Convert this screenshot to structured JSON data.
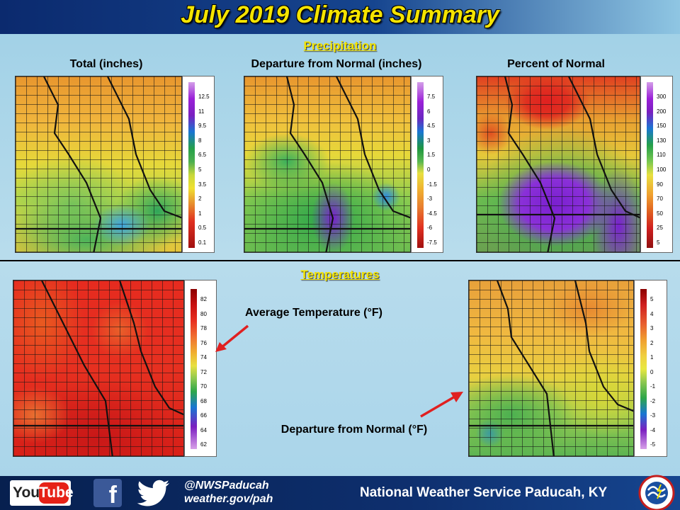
{
  "header": {
    "title": "July 2019 Climate Summary"
  },
  "precipitation": {
    "section_title": "Precipitation",
    "panels": [
      {
        "label": "Total (inches)",
        "legend": [
          "12.5",
          "11",
          "9.5",
          "8",
          "6.5",
          "5",
          "3.5",
          "2",
          "1",
          "0.5",
          "0.1"
        ]
      },
      {
        "label": "Departure from Normal (inches)",
        "legend": [
          "7.5",
          "6",
          "4.5",
          "3",
          "1.5",
          "0",
          "-1.5",
          "-3",
          "-4.5",
          "-6",
          "-7.5"
        ]
      },
      {
        "label": "Percent of Normal",
        "legend": [
          "300",
          "200",
          "150",
          "130",
          "110",
          "100",
          "90",
          "70",
          "50",
          "25",
          "5"
        ]
      }
    ]
  },
  "temperatures": {
    "section_title": "Temperatures",
    "average": {
      "label": "Average Temperature (°F)",
      "legend": [
        "82",
        "80",
        "78",
        "76",
        "74",
        "72",
        "70",
        "68",
        "66",
        "64",
        "62"
      ]
    },
    "departure": {
      "label": "Departure from Normal (°F)",
      "legend": [
        "5",
        "4",
        "3",
        "2",
        "1",
        "0",
        "-1",
        "-2",
        "-3",
        "-4",
        "-5"
      ]
    }
  },
  "footer": {
    "youtube_you": "You",
    "youtube_tube": "Tube",
    "facebook_glyph": "f",
    "handle": "@NWSPaducah",
    "url": "weather.gov/pah",
    "office": "National Weather Service Paducah, KY",
    "icons": [
      "youtube-icon",
      "facebook-icon",
      "twitter-icon",
      "nws-logo-icon"
    ]
  },
  "colors": {
    "title_yellow": "#f5e400",
    "header_navy": "#0b2a6e",
    "background": "#b8dcec",
    "arrow_red": "#e02020"
  }
}
